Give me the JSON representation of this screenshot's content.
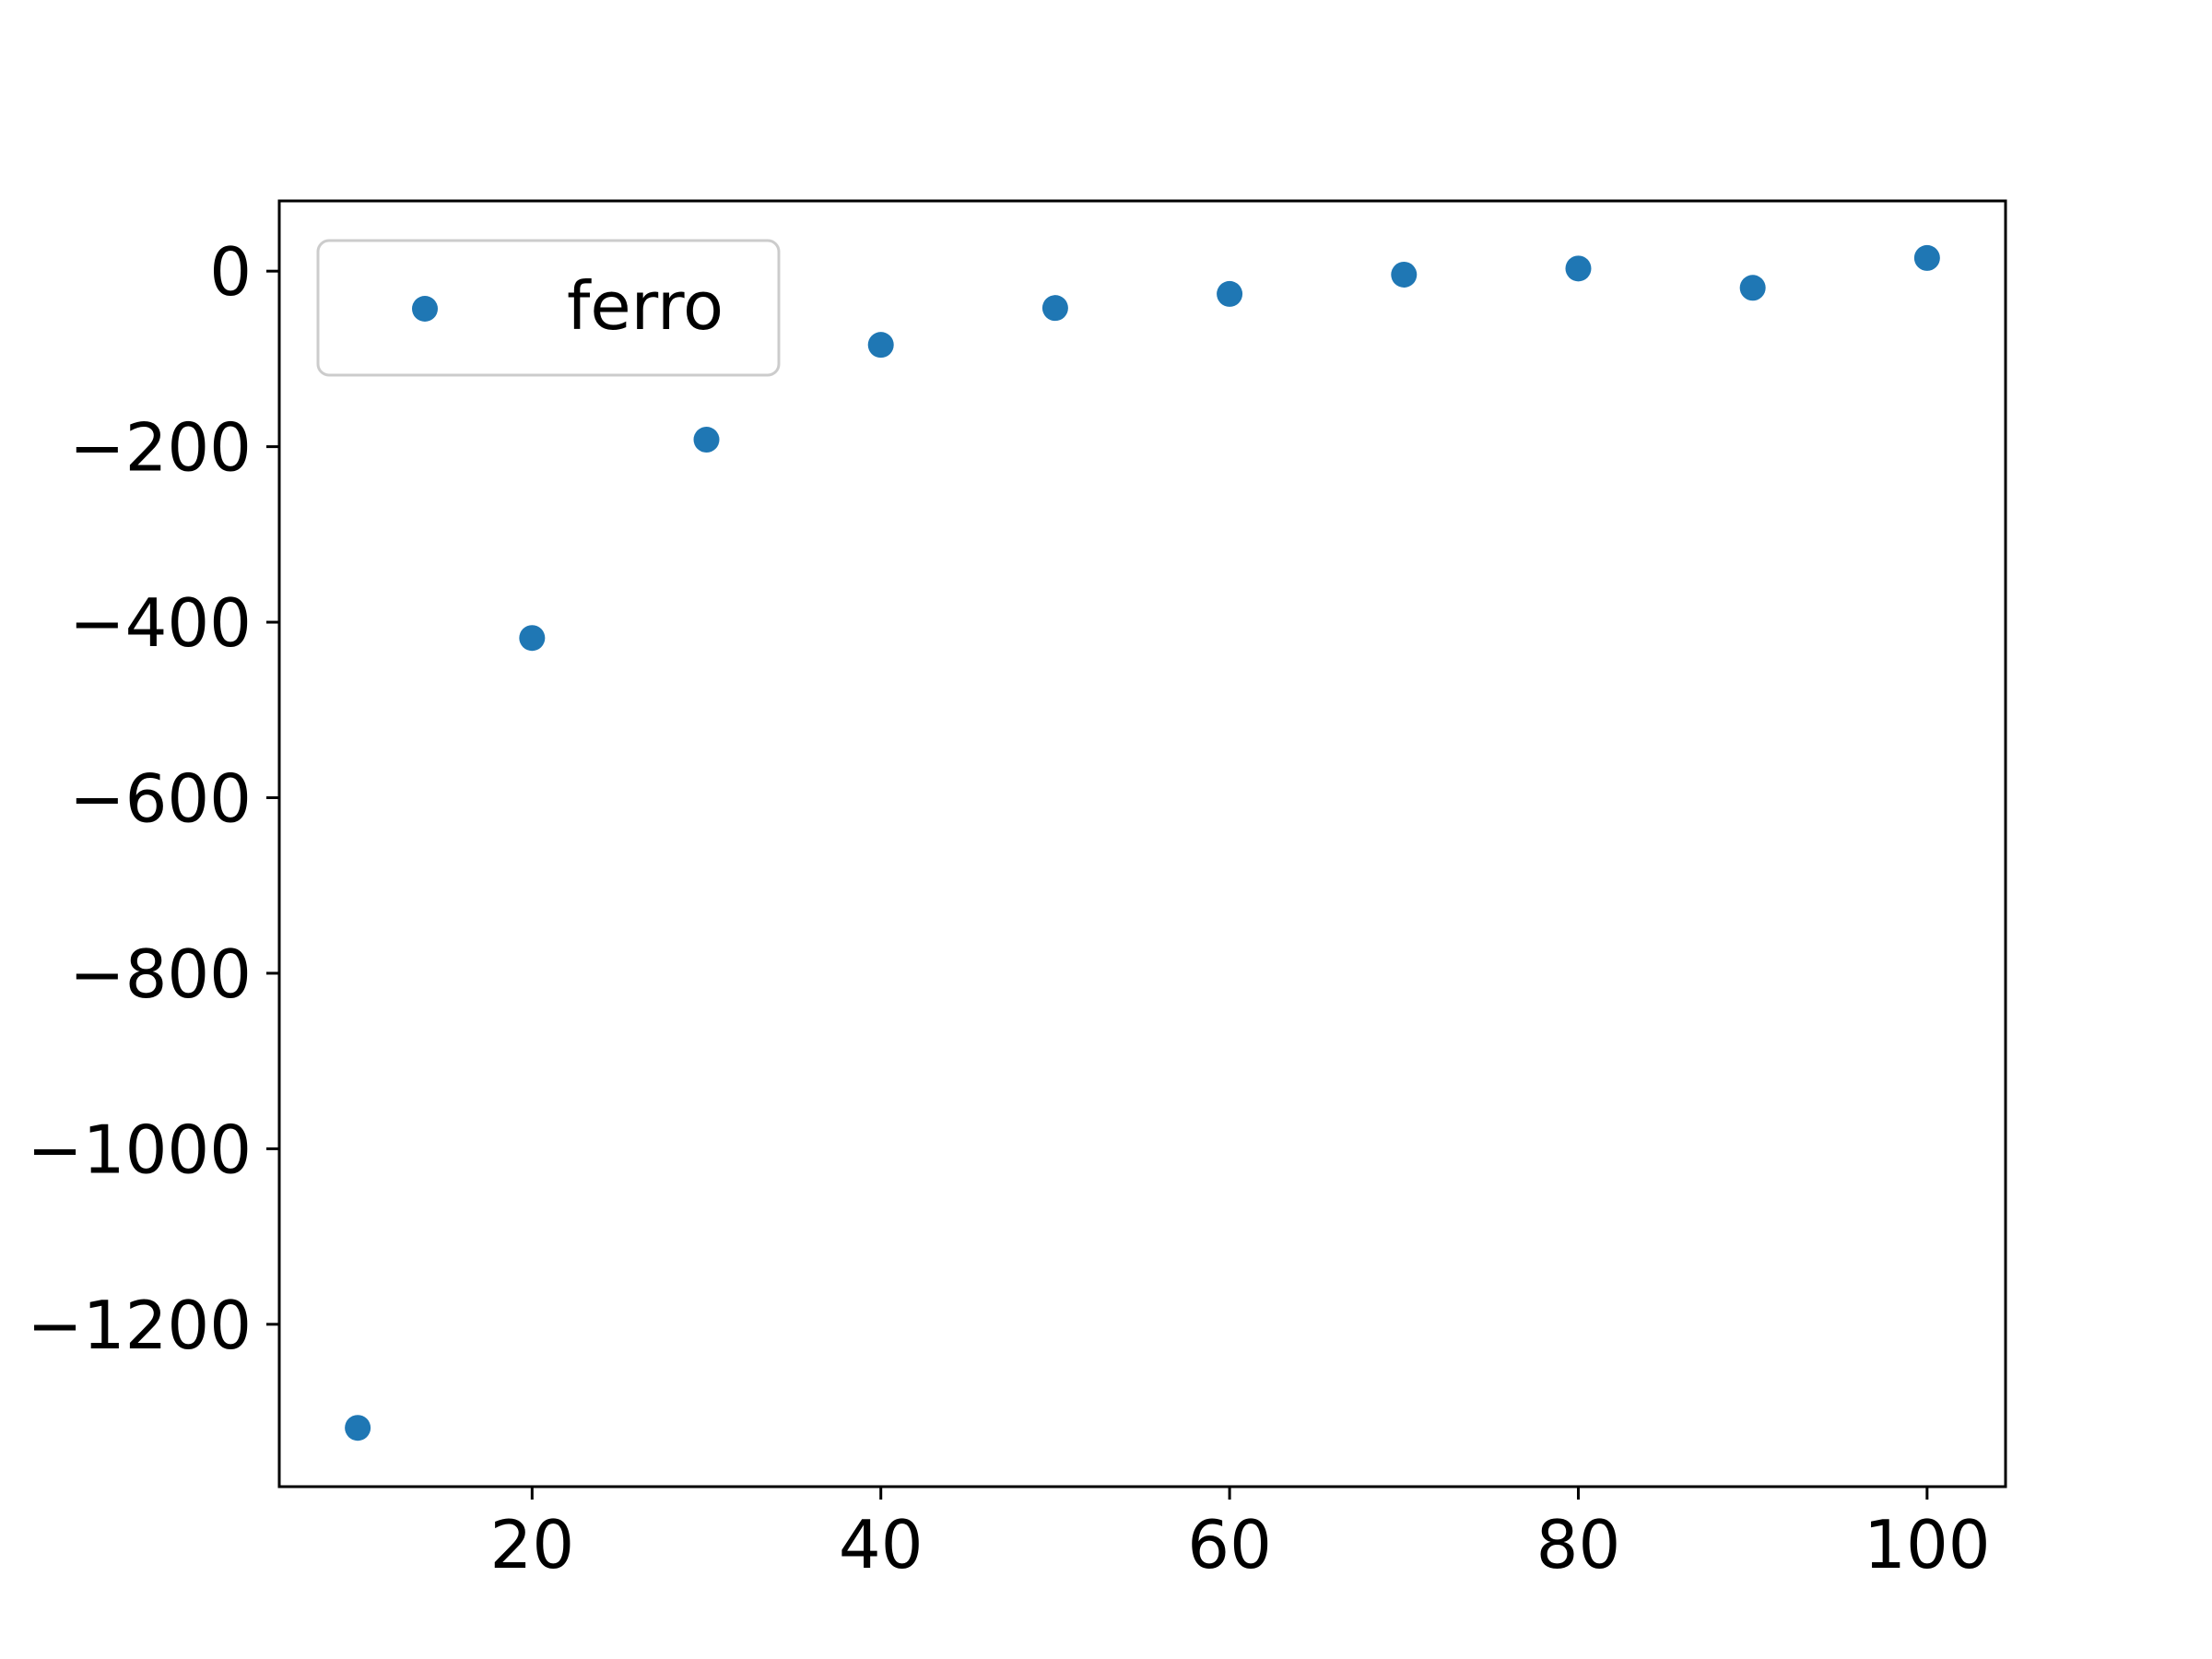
{
  "chart_data": {
    "type": "scatter",
    "title": "",
    "xlabel": "",
    "ylabel": "",
    "xlim": [
      5.5,
      104.5
    ],
    "ylim": [
      -1385,
      80
    ],
    "x_ticks": [
      20,
      40,
      60,
      80,
      100
    ],
    "x_tick_labels": [
      "20",
      "40",
      "60",
      "80",
      "100"
    ],
    "y_ticks": [
      0,
      -200,
      -400,
      -600,
      -800,
      -1000,
      -1200
    ],
    "y_tick_labels": [
      "0",
      "−200",
      "−400",
      "−600",
      "−800",
      "−1000",
      "−1200"
    ],
    "grid": false,
    "legend_position": "top-left",
    "series": [
      {
        "name": "ferro",
        "color": "#1f77b4",
        "x": [
          10,
          20,
          30,
          40,
          50,
          60,
          70,
          80,
          90,
          100
        ],
        "y": [
          -1318,
          -418,
          -192,
          -84,
          -42,
          -26,
          -4,
          3,
          -19,
          15
        ]
      }
    ]
  }
}
